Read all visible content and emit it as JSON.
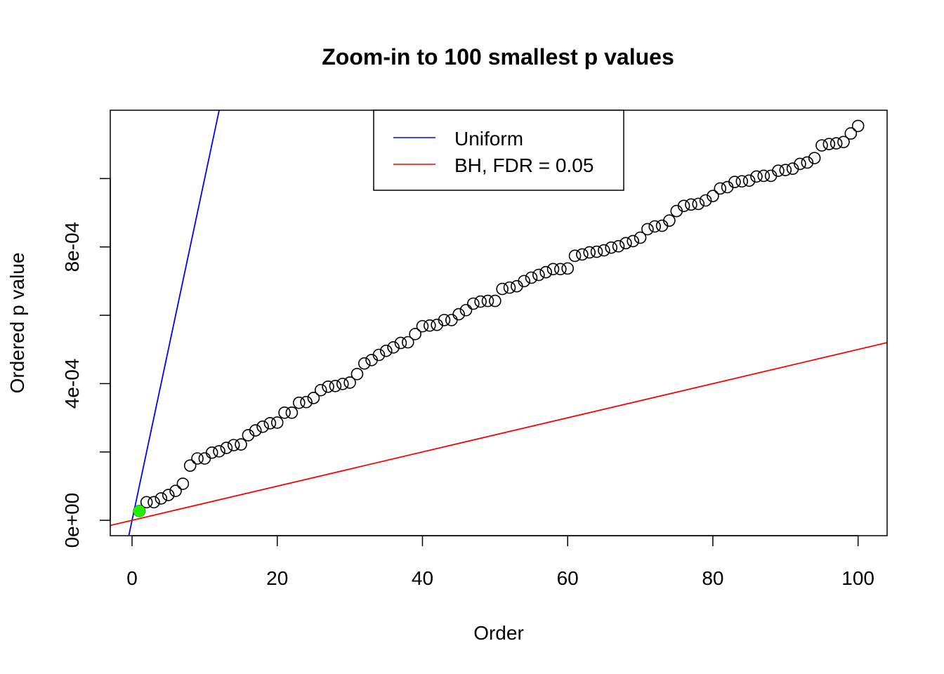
{
  "chart_data": {
    "type": "scatter",
    "title": "Zoom-in to 100 smallest p values",
    "xlabel": "Order",
    "ylabel": "Ordered p value",
    "xlim": [
      -3,
      104
    ],
    "ylim": [
      -4.5e-05,
      0.0012
    ],
    "x_ticks": [
      0,
      20,
      40,
      60,
      80,
      100
    ],
    "x_tick_labels": [
      "0",
      "20",
      "40",
      "60",
      "80",
      "100"
    ],
    "y_ticks": [
      0,
      0.0002,
      0.0004,
      0.0006,
      0.0008,
      0.001
    ],
    "y_tick_labels": [
      "0e+00",
      "",
      "4e-04",
      "",
      "8e-04",
      ""
    ],
    "grid": false,
    "legend": {
      "placement": "top-center",
      "entries": [
        {
          "label": "Uniform",
          "color": "#0000ff"
        },
        {
          "label": "BH, FDR = 0.05",
          "color": "#ff0000"
        }
      ]
    },
    "lines": [
      {
        "name": "Uniform",
        "color": "#0000ff",
        "slope": 0.0001,
        "intercept": 0
      },
      {
        "name": "BH, FDR = 0.05",
        "color": "#ff0000",
        "slope": 5e-06,
        "intercept": 0
      }
    ],
    "highlighted_points": [
      {
        "x": 1,
        "y": 2.7e-05,
        "color": "#22ee00"
      }
    ],
    "points_color": "#000000",
    "x": [
      1,
      2,
      3,
      4,
      5,
      6,
      7,
      8,
      9,
      10,
      11,
      12,
      13,
      14,
      15,
      16,
      17,
      18,
      19,
      20,
      21,
      22,
      23,
      24,
      25,
      26,
      27,
      28,
      29,
      30,
      31,
      32,
      33,
      34,
      35,
      36,
      37,
      38,
      39,
      40,
      41,
      42,
      43,
      44,
      45,
      46,
      47,
      48,
      49,
      50,
      51,
      52,
      53,
      54,
      55,
      56,
      57,
      58,
      59,
      60,
      61,
      62,
      63,
      64,
      65,
      66,
      67,
      68,
      69,
      70,
      71,
      72,
      73,
      74,
      75,
      76,
      77,
      78,
      79,
      80,
      81,
      82,
      83,
      84,
      85,
      86,
      87,
      88,
      89,
      90,
      91,
      92,
      93,
      94,
      95,
      96,
      97,
      98,
      99,
      100
    ],
    "y": [
      2.7e-05,
      5.3e-05,
      5.3e-05,
      6.4e-05,
      7.4e-05,
      8.6e-05,
      0.000107,
      0.00016,
      0.000181,
      0.000181,
      0.000198,
      0.000202,
      0.000212,
      0.00022,
      0.000222,
      0.000249,
      0.000263,
      0.000274,
      0.000284,
      0.000286,
      0.000315,
      0.000315,
      0.000344,
      0.000346,
      0.000358,
      0.000381,
      0.000391,
      0.000393,
      0.000399,
      0.000403,
      0.000428,
      0.000459,
      0.000469,
      0.000484,
      0.000496,
      0.000506,
      0.000519,
      0.000521,
      0.000545,
      0.000568,
      0.00057,
      0.000572,
      0.000586,
      0.000586,
      0.000603,
      0.000615,
      0.000634,
      0.00064,
      0.000642,
      0.000642,
      0.000677,
      0.000681,
      0.000685,
      0.0007,
      0.00071,
      0.000718,
      0.000726,
      0.000735,
      0.000735,
      0.000737,
      0.000774,
      0.000778,
      0.000784,
      0.000786,
      0.00079,
      0.000798,
      0.000802,
      0.000811,
      0.000817,
      0.000827,
      0.000852,
      0.00086,
      0.000862,
      0.000877,
      0.000905,
      0.00092,
      0.000924,
      0.000926,
      0.000936,
      0.000949,
      0.000971,
      0.000975,
      0.00099,
      0.000992,
      0.000994,
      0.001006,
      0.001008,
      0.001008,
      0.001023,
      0.001025,
      0.001029,
      0.001043,
      0.001047,
      0.00106,
      0.001097,
      0.001101,
      0.001103,
      0.001107,
      0.001132,
      0.001154
    ]
  }
}
